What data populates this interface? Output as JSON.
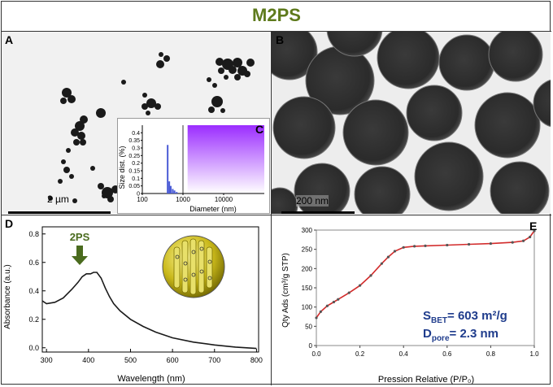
{
  "figure_title": "M2PS",
  "panels": {
    "A": {
      "label": "A",
      "scale_bar": "2 µm"
    },
    "B": {
      "label": "B",
      "scale_bar": "200 nm"
    },
    "C": {
      "label": "C"
    },
    "D": {
      "label": "D",
      "annotation": "2PS"
    },
    "E": {
      "label": "E"
    }
  },
  "colors": {
    "title": "#5e7a1c",
    "accent": "#b400ff",
    "curve": "#d22b2b",
    "annotation_blue": "#1f3c8c",
    "arrow": "#4a6b1e"
  },
  "chart_data": [
    {
      "id": "C",
      "type": "bar",
      "title": "",
      "xlabel": "Diameter (nm)",
      "ylabel": "Size dist. (%)",
      "xscale": "log",
      "xlim": [
        100,
        100000
      ],
      "ylim": [
        0,
        0.45
      ],
      "xticks": [
        "100",
        "1000",
        "10000"
      ],
      "yticks": [
        "0",
        "0.05",
        "0.1",
        "0.15",
        "0.2",
        "0.25",
        "0.3",
        "0.35",
        "0.4"
      ],
      "x": [
        420,
        460,
        500,
        560,
        620,
        700
      ],
      "values": [
        0.32,
        0.08,
        0.05,
        0.03,
        0.02,
        0.01
      ],
      "shaded_range": [
        1300,
        100000
      ]
    },
    {
      "id": "D",
      "type": "line",
      "title": "",
      "xlabel": "Wavelength  (nm)",
      "ylabel": "Absorbance (a.u.)",
      "xlim": [
        290,
        805
      ],
      "ylim": [
        -0.03,
        0.85
      ],
      "xticks": [
        "300",
        "400",
        "500",
        "600",
        "700",
        "800"
      ],
      "yticks": [
        "0.0",
        "0.2",
        "0.4",
        "0.6",
        "0.8"
      ],
      "x": [
        290,
        300,
        320,
        340,
        360,
        375,
        385,
        395,
        405,
        412,
        420,
        430,
        440,
        450,
        460,
        475,
        500,
        530,
        560,
        600,
        650,
        700,
        750,
        800
      ],
      "y": [
        0.33,
        0.31,
        0.32,
        0.35,
        0.41,
        0.46,
        0.5,
        0.52,
        0.52,
        0.53,
        0.53,
        0.49,
        0.42,
        0.36,
        0.31,
        0.26,
        0.2,
        0.15,
        0.11,
        0.07,
        0.04,
        0.02,
        0.005,
        -0.005
      ]
    },
    {
      "id": "E",
      "type": "scatter",
      "title": "",
      "xlabel": "Pression Relative (P/P₀)",
      "ylabel": "Qty Ads (cm³/g STP)",
      "xlim": [
        0,
        1.0
      ],
      "ylim": [
        0,
        300
      ],
      "xticks": [
        "0.0",
        "0.2",
        "0.4",
        "0.6",
        "0.8",
        "1.0"
      ],
      "yticks": [
        "0",
        "50",
        "100",
        "150",
        "200",
        "250",
        "300"
      ],
      "x": [
        0,
        0.02,
        0.05,
        0.08,
        0.1,
        0.15,
        0.2,
        0.25,
        0.3,
        0.33,
        0.36,
        0.4,
        0.45,
        0.5,
        0.6,
        0.7,
        0.8,
        0.9,
        0.95,
        0.98,
        1.0
      ],
      "y": [
        72,
        88,
        103,
        113,
        120,
        137,
        156,
        182,
        213,
        230,
        245,
        255,
        258,
        259,
        261,
        263,
        265,
        268,
        272,
        282,
        298
      ],
      "annotation_line1": "S",
      "annotation_line1_sub": "BET",
      "annotation_line1_value": "= 603 m²/g",
      "annotation_line2": "D",
      "annotation_line2_sub": "pore",
      "annotation_line2_value": "= 2.3 nm"
    }
  ]
}
